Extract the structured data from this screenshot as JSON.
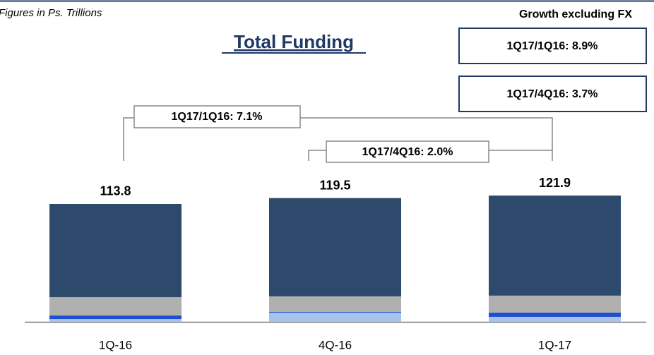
{
  "chart_data": {
    "type": "stacked_bar",
    "title": "Total Funding",
    "subtitle": "Figures in Ps. Trillions",
    "categories": [
      "1Q-16",
      "4Q-16",
      "1Q-17"
    ],
    "series": [
      {
        "color": "#a7c3e8",
        "values": [
          2.7,
          8.9,
          4.8
        ]
      },
      {
        "color": "#1f4fd1",
        "values": [
          3.4,
          0.7,
          4.1
        ]
      },
      {
        "color": "#b0b0b0",
        "values": [
          17.7,
          15.0,
          16.4
        ]
      },
      {
        "color": "#2d4a6d",
        "values": [
          90.0,
          94.9,
          96.6
        ]
      }
    ],
    "totals": [
      113.8,
      119.5,
      121.9
    ],
    "annotations": {
      "fx_heading": "Growth excluding FX",
      "fx_yoy": "1Q17/1Q16: 8.9%",
      "fx_qoq": "1Q17/4Q16: 3.7%",
      "yoy": "1Q17/1Q16: 7.1%",
      "qoq": "1Q17/4Q16: 2.0%"
    }
  }
}
